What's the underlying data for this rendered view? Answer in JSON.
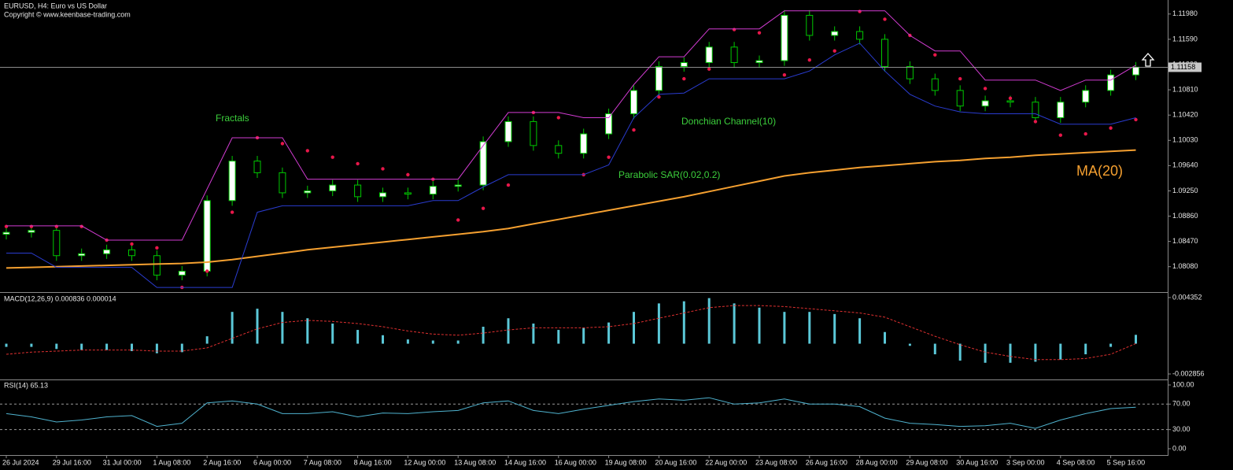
{
  "chart_data": [
    {
      "type": "candlestick",
      "title": "EURUSD, H4:  Euro vs US Dollar",
      "subtitle": "Copyright © www.keenbase-trading.com",
      "categories": [
        "26 Jul 2024",
        null,
        "29 Jul 16:00",
        null,
        "31 Jul 00:00",
        null,
        "1 Aug 08:00",
        null,
        "2 Aug 16:00",
        null,
        "6 Aug 00:00",
        null,
        "7 Aug 08:00",
        null,
        "8 Aug 16:00",
        null,
        "12 Aug 00:00",
        null,
        "13 Aug 08:00",
        null,
        "14 Aug 16:00",
        null,
        "16 Aug 00:00",
        null,
        "19 Aug 08:00",
        null,
        "20 Aug 16:00",
        null,
        "22 Aug 00:00",
        null,
        "23 Aug 08:00",
        null,
        "26 Aug 16:00",
        null,
        "28 Aug 00:00",
        null,
        "29 Aug 08:00",
        null,
        "30 Aug 16:00",
        null,
        "3 Sep 00:00",
        null,
        "4 Sep 08:00",
        null,
        "5 Sep 16:00",
        null
      ],
      "open": [
        1.0858,
        1.0861,
        1.0864,
        1.0825,
        1.0828,
        1.0834,
        1.0825,
        1.0795,
        1.0801,
        1.091,
        1.0971,
        1.0953,
        1.0922,
        1.0925,
        1.0934,
        1.0916,
        1.0922,
        1.092,
        1.0932,
        1.0934,
        1.1001,
        1.1032,
        1.0995,
        1.0983,
        1.1013,
        1.1044,
        1.108,
        1.1117,
        1.1123,
        1.1147,
        1.1123,
        1.1126,
        1.1196,
        1.1165,
        1.1171,
        1.1159,
        1.1117,
        1.1098,
        1.108,
        1.1056,
        1.1064,
        1.1062,
        1.1038,
        1.1062,
        1.108,
        1.1104
      ],
      "high": [
        1.0869,
        1.0872,
        1.0872,
        1.0836,
        1.0842,
        1.0842,
        1.0833,
        1.0809,
        1.0918,
        1.0979,
        1.0979,
        1.0961,
        1.0933,
        1.0942,
        1.0942,
        1.093,
        1.093,
        1.094,
        1.0942,
        1.1009,
        1.104,
        1.104,
        1.1003,
        1.1021,
        1.1052,
        1.1088,
        1.1125,
        1.1131,
        1.1155,
        1.1155,
        1.1134,
        1.1204,
        1.1204,
        1.1179,
        1.1179,
        1.1167,
        1.1125,
        1.1106,
        1.1088,
        1.1072,
        1.1072,
        1.107,
        1.107,
        1.1088,
        1.1112,
        1.1124
      ],
      "low": [
        1.085,
        1.0853,
        1.0817,
        1.0817,
        1.082,
        1.0817,
        1.0787,
        1.0787,
        1.0793,
        1.0902,
        1.0945,
        1.0914,
        1.0914,
        1.0917,
        1.0908,
        1.0908,
        1.0912,
        1.0912,
        1.0924,
        1.0926,
        1.0993,
        1.0987,
        1.0975,
        1.0975,
        1.1005,
        1.1036,
        1.1072,
        1.1109,
        1.1115,
        1.1115,
        1.1115,
        1.1118,
        1.1157,
        1.1157,
        1.1151,
        1.1109,
        1.109,
        1.1072,
        1.1048,
        1.1048,
        1.1054,
        1.103,
        1.103,
        1.1054,
        1.1072,
        1.1096
      ],
      "close": [
        1.0861,
        1.0864,
        1.0825,
        1.0828,
        1.0834,
        1.0825,
        1.0795,
        1.0801,
        1.091,
        1.0971,
        1.0953,
        1.0922,
        1.0925,
        1.0934,
        1.0916,
        1.0922,
        1.092,
        1.0932,
        1.0934,
        1.1001,
        1.1032,
        1.0995,
        1.0983,
        1.1013,
        1.1044,
        1.108,
        1.1117,
        1.1123,
        1.1147,
        1.1123,
        1.1126,
        1.1196,
        1.1165,
        1.1171,
        1.1159,
        1.1117,
        1.1098,
        1.108,
        1.1056,
        1.1064,
        1.1062,
        1.1038,
        1.1062,
        1.108,
        1.1104,
        1.1116
      ],
      "up_color": "#ffffff",
      "down_color": "#000000",
      "wick_color": "#00c800",
      "series": [
        {
          "name": "MA(20)",
          "color": "#f5a030",
          "style": "line",
          "values": [
            1.0806,
            1.0807,
            1.0808,
            1.0809,
            1.081,
            1.0811,
            1.0812,
            1.0813,
            1.0815,
            1.0819,
            1.0824,
            1.0829,
            1.0834,
            1.0838,
            1.0842,
            1.0846,
            1.085,
            1.0854,
            1.0858,
            1.0862,
            1.0867,
            1.0874,
            1.0881,
            1.0888,
            1.0895,
            1.0902,
            1.0909,
            1.0916,
            1.0924,
            1.0932,
            1.094,
            1.0948,
            1.0953,
            1.0957,
            1.0961,
            1.0964,
            1.0967,
            1.097,
            1.0972,
            1.0975,
            1.0977,
            1.098,
            1.0982,
            1.0984,
            1.0986,
            1.0988
          ]
        },
        {
          "name": "Parabolic SAR(0.02,0.2)",
          "color": "#e8174a",
          "style": "dots",
          "values": [
            1.087,
            1.087,
            1.087,
            1.087,
            1.0849,
            1.0843,
            1.0837,
            1.0776,
            1.0801,
            1.0892,
            1.1007,
            1.0998,
            1.0987,
            1.0977,
            1.0967,
            1.0959,
            1.095,
            1.0943,
            1.088,
            1.0898,
            1.0934,
            1.1046,
            1.1038,
            1.095,
            1.0977,
            1.1019,
            1.107,
            1.1098,
            1.1113,
            1.1174,
            1.1169,
            1.1104,
            1.1127,
            1.1141,
            1.1202,
            1.119,
            1.1165,
            1.1135,
            1.1098,
            1.1083,
            1.1068,
            1.1032,
            1.1011,
            1.1013,
            1.1022,
            1.1035
          ]
        },
        {
          "name": "Donchian Channel(10)",
          "color": "#d23cd2",
          "style": "line",
          "values": [
            1.0871,
            1.0871,
            1.0871,
            1.0871,
            1.0849,
            1.0849,
            1.0849,
            1.0849,
            1.0928,
            1.1007,
            1.1007,
            1.1007,
            1.0943,
            1.0943,
            1.0943,
            1.0943,
            1.0943,
            1.0943,
            1.0943,
            1.0995,
            1.1046,
            1.1046,
            1.1046,
            1.1038,
            1.1038,
            1.1089,
            1.1132,
            1.1132,
            1.1175,
            1.1175,
            1.1175,
            1.1203,
            1.1203,
            1.1203,
            1.1203,
            1.1203,
            1.1165,
            1.1141,
            1.1141,
            1.1096,
            1.1096,
            1.1096,
            1.108,
            1.1096,
            1.1096,
            1.1119
          ]
        },
        {
          "color": "#2a3cd0",
          "style": "line",
          "values": [
            1.0829,
            1.0829,
            1.0807,
            1.0807,
            1.0807,
            1.0807,
            1.0776,
            1.0776,
            1.0776,
            1.0776,
            1.0892,
            1.0902,
            1.0902,
            1.0902,
            1.0902,
            1.0902,
            1.0902,
            1.091,
            1.091,
            1.0931,
            1.095,
            1.095,
            1.095,
            1.095,
            1.0965,
            1.1038,
            1.1074,
            1.1076,
            1.1098,
            1.1098,
            1.1098,
            1.1098,
            1.111,
            1.1135,
            1.1153,
            1.111,
            1.1074,
            1.1056,
            1.1047,
            1.1044,
            1.1044,
            1.1044,
            1.1028,
            1.1028,
            1.1028,
            1.1038
          ]
        }
      ],
      "annotations": [
        "Fractals"
      ],
      "last_price": 1.11158,
      "ylim": [
        1.077,
        1.1216
      ],
      "yticks": [
        {
          "value": 1.1198,
          "label": "1.11980"
        },
        {
          "value": 1.1159,
          "label": "1.11590"
        },
        {
          "value": 1.112,
          "label": "1.11200"
        },
        {
          "value": 1.1081,
          "label": "1.10810"
        },
        {
          "value": 1.1042,
          "label": "1.10420"
        },
        {
          "value": 1.1003,
          "label": "1.10030"
        },
        {
          "value": 1.0964,
          "label": "1.09640"
        },
        {
          "value": 1.0925,
          "label": "1.09250"
        },
        {
          "value": 1.0886,
          "label": "1.08860"
        },
        {
          "value": 1.0847,
          "label": "1.08470"
        },
        {
          "value": 1.0808,
          "label": "1.08080"
        }
      ]
    },
    {
      "type": "bar",
      "title": "MACD(12,26,9) 0.000836 0.000014",
      "series": [
        {
          "color": "#5bc8d8",
          "style": "histogram",
          "values": [
            -0.0003,
            -0.0003,
            -0.0005,
            -0.0006,
            -0.0006,
            -0.0007,
            -0.0009,
            -0.0008,
            0.0007,
            0.003,
            0.0033,
            0.003,
            0.0024,
            0.0019,
            0.0013,
            0.0008,
            0.0004,
            0.0003,
            0.0003,
            0.0016,
            0.0024,
            0.0019,
            0.0013,
            0.0015,
            0.002,
            0.003,
            0.0038,
            0.004,
            0.0043,
            0.0038,
            0.0034,
            0.003,
            0.003,
            0.0028,
            0.0024,
            0.0011,
            -0.0002,
            -0.001,
            -0.0016,
            -0.0018,
            -0.0018,
            -0.0017,
            -0.0015,
            -0.001,
            -0.0003,
            0.000836
          ]
        },
        {
          "color": "#e03030",
          "style": "dashed",
          "values": [
            -0.001,
            -0.0008,
            -0.0007,
            -0.0006,
            -0.0006,
            -0.0006,
            -0.0007,
            -0.0007,
            -0.0004,
            0.0005,
            0.0014,
            0.002,
            0.0022,
            0.0021,
            0.0019,
            0.0016,
            0.0012,
            0.0009,
            0.0008,
            0.001,
            0.0013,
            0.0015,
            0.0015,
            0.0015,
            0.0016,
            0.0019,
            0.0024,
            0.0029,
            0.0034,
            0.0036,
            0.0036,
            0.0035,
            0.0033,
            0.0031,
            0.0029,
            0.0025,
            0.0016,
            0.0007,
            -0.0001,
            -0.0008,
            -0.0012,
            -0.0015,
            -0.0015,
            -0.0014,
            -0.001,
            1.4e-05
          ]
        }
      ],
      "ylim": [
        -0.0033,
        0.00472
      ],
      "yticks": [
        0.004352,
        -0.002856
      ]
    },
    {
      "type": "line",
      "title": "RSI(14) 65.13",
      "series": [
        {
          "color": "#4fb3cf",
          "style": "line",
          "values": [
            55,
            50,
            42,
            45,
            50,
            52,
            35,
            40,
            72,
            75,
            70,
            55,
            55,
            58,
            50,
            56,
            55,
            58,
            60,
            72,
            75,
            60,
            55,
            62,
            68,
            74,
            78,
            76,
            80,
            70,
            72,
            78,
            70,
            70,
            66,
            48,
            40,
            38,
            35,
            36,
            40,
            32,
            45,
            55,
            63,
            65.13
          ]
        }
      ],
      "levels": [
        70,
        30
      ],
      "ylim": [
        -9.9,
        107.4
      ],
      "yticks": [
        {
          "value": 100,
          "label": "100.00"
        },
        {
          "value": 70,
          "label": "70.00"
        },
        {
          "value": 30,
          "label": "30.00"
        },
        {
          "value": 0,
          "label": "0.00"
        }
      ]
    }
  ]
}
